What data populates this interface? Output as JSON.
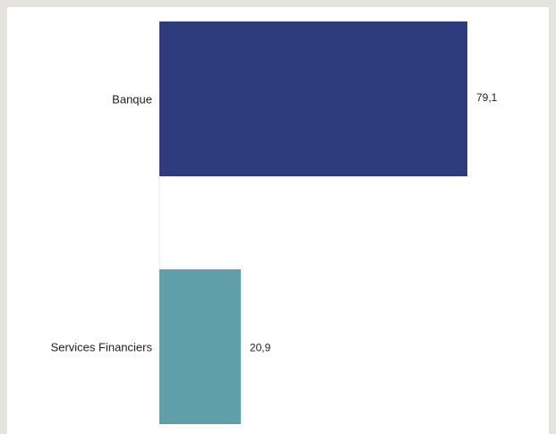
{
  "chart_data": {
    "type": "bar",
    "orientation": "horizontal",
    "categories": [
      "Banque",
      "Services Financiers"
    ],
    "values": [
      79.1,
      20.9
    ],
    "value_labels": [
      "79,1",
      "20,9"
    ],
    "colors": [
      "#2e3c7e",
      "#5f9faa"
    ],
    "xlim": [
      0,
      100
    ],
    "title": "",
    "xlabel": "",
    "ylabel": "",
    "grid": false,
    "legend": false
  }
}
